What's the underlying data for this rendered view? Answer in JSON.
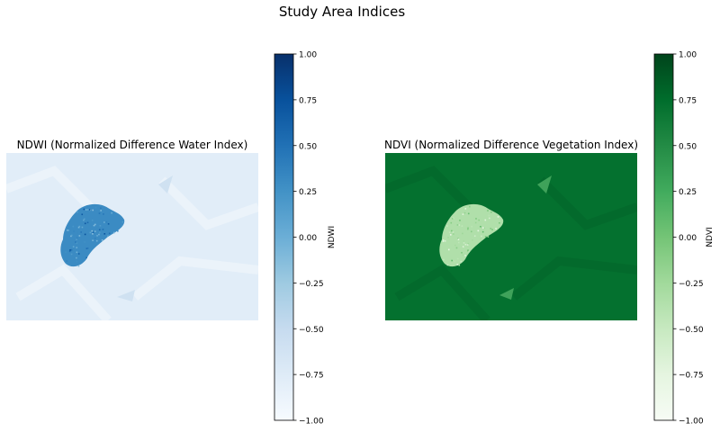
{
  "figure": {
    "suptitle": "Study Area Indices"
  },
  "chart_data": [
    {
      "type": "heatmap",
      "title": "NDWI (Normalized Difference Water Index)",
      "colormap": "Blues",
      "value_range": [
        -1.0,
        1.0
      ],
      "colorbar": {
        "label": "NDWI",
        "ticks": [
          1.0,
          0.75,
          0.5,
          0.25,
          0.0,
          -0.25,
          -0.5,
          -0.75,
          -1.0
        ],
        "tick_labels": [
          "1.00",
          "0.75",
          "0.50",
          "0.25",
          "0.00",
          "−0.25",
          "−0.50",
          "−0.75",
          "−1.00"
        ]
      },
      "background_value": -0.78,
      "feature_value": 0.3,
      "axis_visible": false
    },
    {
      "type": "heatmap",
      "title": "NDVI (Normalized Difference Vegetation Index)",
      "colormap": "Greens",
      "value_range": [
        -1.0,
        1.0
      ],
      "colorbar": {
        "label": "NDVI",
        "ticks": [
          1.0,
          0.75,
          0.5,
          0.25,
          0.0,
          -0.25,
          -0.5,
          -0.75,
          -1.0
        ],
        "tick_labels": [
          "1.00",
          "0.75",
          "0.50",
          "0.25",
          "0.00",
          "−0.25",
          "−0.50",
          "−0.75",
          "−1.00"
        ]
      },
      "background_value": 0.72,
      "feature_value": -0.35,
      "axis_visible": false
    }
  ],
  "colors": {
    "blues": [
      "#f7fbff",
      "#deebf7",
      "#c6dbef",
      "#9ecae1",
      "#6baed6",
      "#4292c6",
      "#2171b5",
      "#08519c",
      "#08306b"
    ],
    "greens": [
      "#f7fcf5",
      "#e5f5e0",
      "#c7e9c0",
      "#a1d99b",
      "#74c476",
      "#41ab5d",
      "#238b45",
      "#006d2c",
      "#00441b"
    ]
  }
}
